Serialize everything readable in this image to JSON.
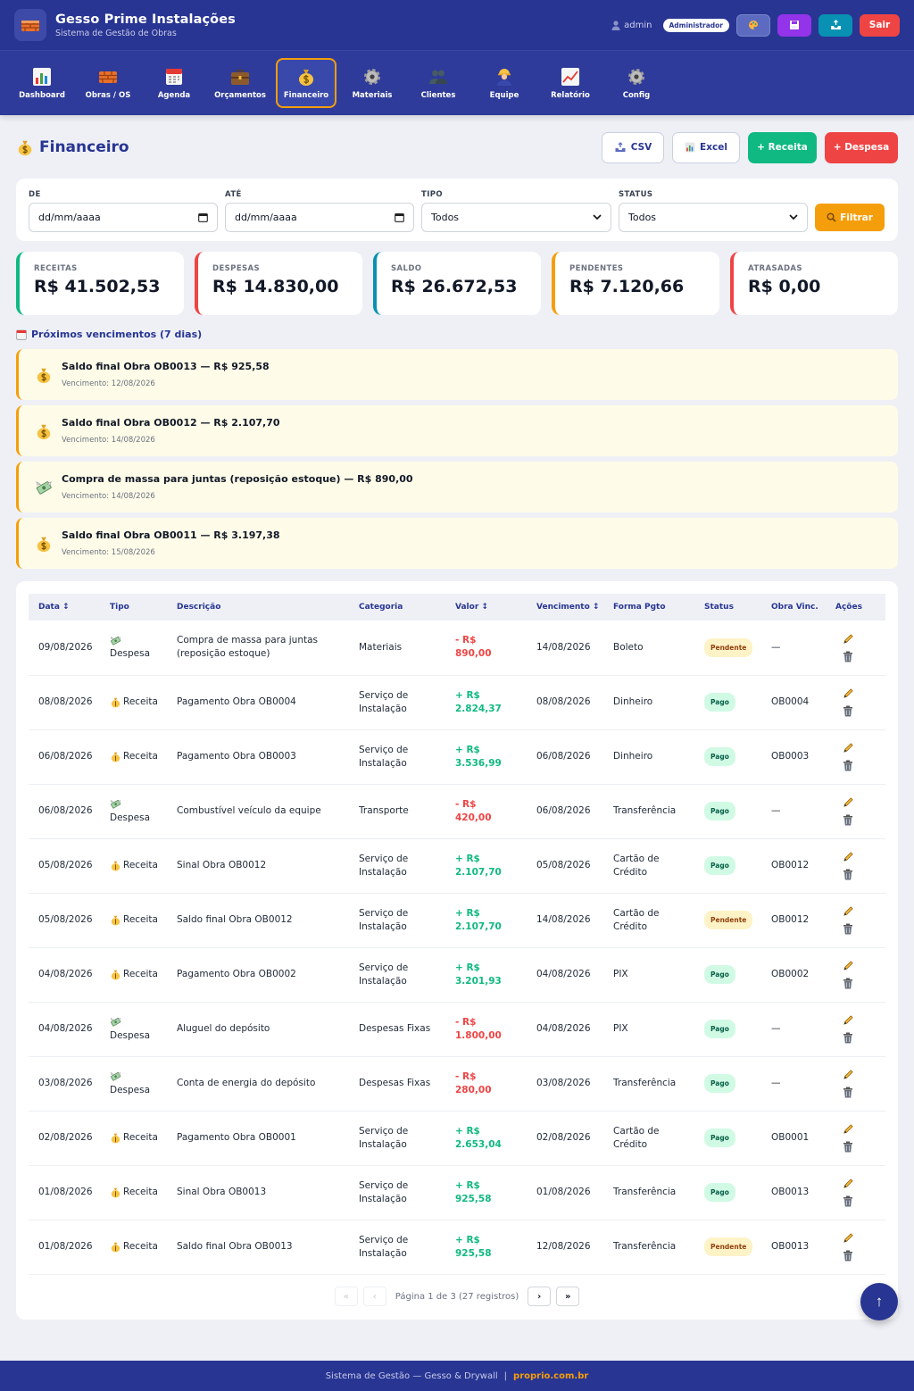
{
  "header": {
    "title": "Gesso Prime Instalações",
    "subtitle": "Sistema de Gestão de Obras",
    "user": "admin",
    "role": "Administrador",
    "exit_label": "Sair"
  },
  "nav": [
    {
      "label": "Dashboard",
      "icon": "chart-icon"
    },
    {
      "label": "Obras / OS",
      "icon": "bricks-icon"
    },
    {
      "label": "Agenda",
      "icon": "calendar-icon"
    },
    {
      "label": "Orçamentos",
      "icon": "briefcase-icon"
    },
    {
      "label": "Financeiro",
      "icon": "money-bag-icon",
      "active": true
    },
    {
      "label": "Materiais",
      "icon": "gear-icon"
    },
    {
      "label": "Clientes",
      "icon": "people-icon"
    },
    {
      "label": "Equipe",
      "icon": "worker-icon"
    },
    {
      "label": "Relatório",
      "icon": "trend-icon"
    },
    {
      "label": "Config",
      "icon": "gear-icon"
    }
  ],
  "page": {
    "title": "Financeiro",
    "csv_label": "CSV",
    "excel_label": "Excel",
    "receita_label": "+ Receita",
    "despesa_label": "+ Despesa"
  },
  "filters": {
    "de_label": "DE",
    "ate_label": "ATÉ",
    "tipo_label": "TIPO",
    "status_label": "STATUS",
    "de_placeholder": "dd/mm/aaaa",
    "ate_placeholder": "dd/mm/aaaa",
    "tipo_value": "Todos",
    "status_value": "Todos",
    "filter_label": "Filtrar"
  },
  "cards": [
    {
      "label": "RECEITAS",
      "value": "R$ 41.502,53",
      "color": "#10b981"
    },
    {
      "label": "DESPESAS",
      "value": "R$ 14.830,00",
      "color": "#ef4444"
    },
    {
      "label": "SALDO",
      "value": "R$ 26.672,53",
      "color": "#0891b2"
    },
    {
      "label": "PENDENTES",
      "value": "R$ 7.120,66",
      "color": "#f59e0b"
    },
    {
      "label": "ATRASADAS",
      "value": "R$ 0,00",
      "color": "#ef4444"
    }
  ],
  "due": {
    "title": "Próximos vencimentos (7 dias)",
    "items": [
      {
        "desc": "Saldo final Obra OB0013 — R$ 925,58",
        "date": "Vencimento: 12/08/2026",
        "icon": "money-bag-icon"
      },
      {
        "desc": "Saldo final Obra OB0012 — R$ 2.107,70",
        "date": "Vencimento: 14/08/2026",
        "icon": "money-bag-icon"
      },
      {
        "desc": "Compra de massa para juntas (reposição estoque) — R$ 890,00",
        "date": "Vencimento: 14/08/2026",
        "icon": "money-wings-icon"
      },
      {
        "desc": "Saldo final Obra OB0011 — R$ 3.197,38",
        "date": "Vencimento: 15/08/2026",
        "icon": "money-bag-icon"
      }
    ]
  },
  "table": {
    "headers": [
      "Data ↕",
      "Tipo",
      "Descrição",
      "Categoria",
      "Valor ↕",
      "Vencimento ↕",
      "Forma Pgto",
      "Status",
      "Obra Vinc.",
      "Ações"
    ],
    "rows": [
      {
        "data": "09/08/2026",
        "tipo": "Despesa",
        "desc": "Compra de massa para juntas (reposição estoque)",
        "cat": "Materiais",
        "valor": "- R$ 890,00",
        "venc": "14/08/2026",
        "forma": "Boleto",
        "status": "Pendente",
        "obra": "—"
      },
      {
        "data": "08/08/2026",
        "tipo": "Receita",
        "desc": "Pagamento Obra OB0004",
        "cat": "Serviço de Instalação",
        "valor": "+ R$ 2.824,37",
        "venc": "08/08/2026",
        "forma": "Dinheiro",
        "status": "Pago",
        "obra": "OB0004"
      },
      {
        "data": "06/08/2026",
        "tipo": "Receita",
        "desc": "Pagamento Obra OB0003",
        "cat": "Serviço de Instalação",
        "valor": "+ R$ 3.536,99",
        "venc": "06/08/2026",
        "forma": "Dinheiro",
        "status": "Pago",
        "obra": "OB0003"
      },
      {
        "data": "06/08/2026",
        "tipo": "Despesa",
        "desc": "Combustível veículo da equipe",
        "cat": "Transporte",
        "valor": "- R$ 420,00",
        "venc": "06/08/2026",
        "forma": "Transferência",
        "status": "Pago",
        "obra": "—"
      },
      {
        "data": "05/08/2026",
        "tipo": "Receita",
        "desc": "Sinal Obra OB0012",
        "cat": "Serviço de Instalação",
        "valor": "+ R$ 2.107,70",
        "venc": "05/08/2026",
        "forma": "Cartão de Crédito",
        "status": "Pago",
        "obra": "OB0012"
      },
      {
        "data": "05/08/2026",
        "tipo": "Receita",
        "desc": "Saldo final Obra OB0012",
        "cat": "Serviço de Instalação",
        "valor": "+ R$ 2.107,70",
        "venc": "14/08/2026",
        "forma": "Cartão de Crédito",
        "status": "Pendente",
        "obra": "OB0012"
      },
      {
        "data": "04/08/2026",
        "tipo": "Receita",
        "desc": "Pagamento Obra OB0002",
        "cat": "Serviço de Instalação",
        "valor": "+ R$ 3.201,93",
        "venc": "04/08/2026",
        "forma": "PIX",
        "status": "Pago",
        "obra": "OB0002"
      },
      {
        "data": "04/08/2026",
        "tipo": "Despesa",
        "desc": "Aluguel do depósito",
        "cat": "Despesas Fixas",
        "valor": "- R$ 1.800,00",
        "venc": "04/08/2026",
        "forma": "PIX",
        "status": "Pago",
        "obra": "—"
      },
      {
        "data": "03/08/2026",
        "tipo": "Despesa",
        "desc": "Conta de energia do depósito",
        "cat": "Despesas Fixas",
        "valor": "- R$ 280,00",
        "venc": "03/08/2026",
        "forma": "Transferência",
        "status": "Pago",
        "obra": "—"
      },
      {
        "data": "02/08/2026",
        "tipo": "Receita",
        "desc": "Pagamento Obra OB0001",
        "cat": "Serviço de Instalação",
        "valor": "+ R$ 2.653,04",
        "venc": "02/08/2026",
        "forma": "Cartão de Crédito",
        "status": "Pago",
        "obra": "OB0001"
      },
      {
        "data": "01/08/2026",
        "tipo": "Receita",
        "desc": "Sinal Obra OB0013",
        "cat": "Serviço de Instalação",
        "valor": "+ R$ 925,58",
        "venc": "01/08/2026",
        "forma": "Transferência",
        "status": "Pago",
        "obra": "OB0013"
      },
      {
        "data": "01/08/2026",
        "tipo": "Receita",
        "desc": "Saldo final Obra OB0013",
        "cat": "Serviço de Instalação",
        "valor": "+ R$ 925,58",
        "venc": "12/08/2026",
        "forma": "Transferência",
        "status": "Pendente",
        "obra": "OB0013"
      }
    ]
  },
  "pagination": {
    "first": "«",
    "prev": "‹",
    "info": "Página 1 de 3 (27 registros)",
    "next": "›",
    "last": "»"
  },
  "scroll_top_label": "↑",
  "footer": {
    "text": "Sistema de Gestão — Gesso & Drywall",
    "sep": "|",
    "link": "proprio.com.br"
  }
}
